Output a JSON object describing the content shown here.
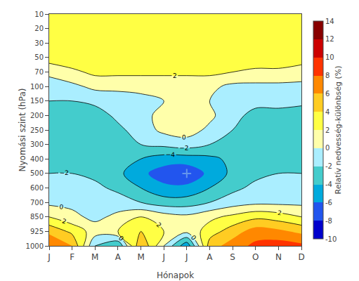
{
  "chart_data": {
    "type": "contour",
    "xlabel": "Hónapok",
    "ylabel": "Nyomási szint (hPa)",
    "colorbar_label": "Relatív nedvesség-különbség (%)",
    "categories": [
      "J",
      "F",
      "M",
      "A",
      "M",
      "J",
      "J",
      "A",
      "S",
      "O",
      "N",
      "D"
    ],
    "y_categories": [
      10,
      20,
      30,
      50,
      70,
      100,
      150,
      200,
      250,
      300,
      400,
      500,
      600,
      700,
      850,
      925,
      1000
    ],
    "levels": [
      -10,
      -8,
      -6,
      -4,
      -2,
      0,
      2,
      4,
      6,
      8,
      10,
      12,
      14
    ],
    "colors": [
      "#0000cc",
      "#2255ee",
      "#00aadd",
      "#44cccc",
      "#aaeeff",
      "#ffffaa",
      "#ffff44",
      "#ffcc22",
      "#ff8800",
      "#ff3300",
      "#cc0000",
      "#880000"
    ],
    "contour_lines": [
      -4,
      -2,
      0,
      2,
      4
    ],
    "contour_labels": [
      -4,
      -2,
      0,
      2
    ],
    "point": {
      "category_index": 6,
      "y": 500,
      "color": "cornflowerblue",
      "marker": "plus"
    },
    "grid": false,
    "legend": false,
    "z": [
      [
        3.5,
        3.5,
        3.5,
        3.5,
        3.5,
        3.5,
        3.5,
        3.5,
        3.5,
        3.5,
        3.5,
        3.5
      ],
      [
        3.5,
        3.5,
        3.5,
        3.5,
        3.5,
        3.5,
        3.5,
        3.5,
        3.5,
        3.5,
        3.5,
        3.5
      ],
      [
        3.5,
        3.5,
        3.5,
        3.5,
        3.5,
        3.5,
        3.5,
        3.5,
        3.5,
        3.5,
        3.5,
        3.5
      ],
      [
        3.0,
        3.5,
        3.5,
        3.5,
        3.5,
        3.5,
        3.5,
        3.5,
        3.5,
        3.5,
        3.5,
        3.0
      ],
      [
        0.5,
        1.5,
        2.5,
        2.5,
        2.5,
        2.5,
        2.5,
        2.5,
        2.0,
        1.5,
        1.5,
        1.0
      ],
      [
        -1.0,
        -0.5,
        0.5,
        0.5,
        0.5,
        0.5,
        0.5,
        0.5,
        -0.5,
        -0.5,
        -0.5,
        -0.5
      ],
      [
        -2.0,
        -2.0,
        -1.5,
        -1.0,
        -0.5,
        0.0,
        0.5,
        0.0,
        -1.0,
        -1.5,
        -1.5,
        -1.5
      ],
      [
        -3.5,
        -3.5,
        -3.0,
        -1.5,
        -0.5,
        0.5,
        1.5,
        0.5,
        -1.5,
        -2.5,
        -2.5,
        -3.0
      ],
      [
        -3.5,
        -3.5,
        -3.0,
        -2.5,
        -1.0,
        0.5,
        1.0,
        -0.5,
        -2.0,
        -2.5,
        -2.5,
        -3.0
      ],
      [
        -2.5,
        -2.5,
        -2.5,
        -2.5,
        -2.0,
        -1.5,
        -1.0,
        -2.0,
        -2.5,
        -2.5,
        -2.5,
        -2.5
      ],
      [
        -2.5,
        -2.5,
        -2.5,
        -3.5,
        -4.0,
        -5.0,
        -5.0,
        -4.5,
        -3.5,
        -2.5,
        -2.5,
        -2.5
      ],
      [
        -2.0,
        -2.0,
        -2.5,
        -3.5,
        -5.5,
        -7.0,
        -7.5,
        -5.5,
        -3.5,
        -2.5,
        -2.0,
        -2.0
      ],
      [
        -1.5,
        -1.5,
        -1.5,
        -2.5,
        -4.0,
        -5.5,
        -5.5,
        -4.0,
        -2.5,
        -1.5,
        -1.5,
        -1.5
      ],
      [
        -0.5,
        -0.5,
        -0.5,
        -1.0,
        -2.0,
        -3.0,
        -3.0,
        -2.0,
        -1.0,
        -0.5,
        -0.5,
        -0.5
      ],
      [
        2.0,
        0.5,
        -0.5,
        0.5,
        2.0,
        1.0,
        0.5,
        1.5,
        2.5,
        3.5,
        3.0,
        2.0
      ],
      [
        5.5,
        3.5,
        1.0,
        2.0,
        4.0,
        2.0,
        0.5,
        3.0,
        5.0,
        7.0,
        6.5,
        5.5
      ],
      [
        8.0,
        6.0,
        -2.0,
        -4.0,
        6.0,
        0.0,
        -5.5,
        5.0,
        7.0,
        8.5,
        9.0,
        8.5
      ]
    ]
  }
}
